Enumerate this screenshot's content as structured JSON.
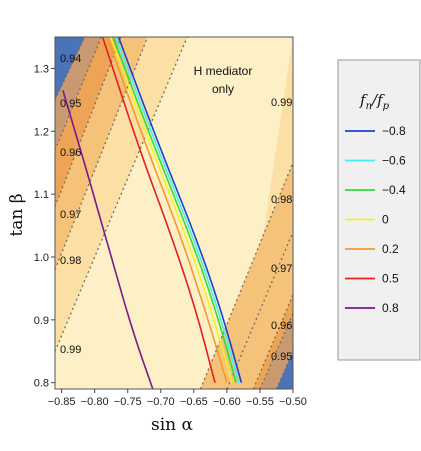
{
  "chart_data": {
    "type": "contour",
    "xlabel": "sin α",
    "ylabel": "tan β",
    "xlim": [
      -0.86,
      -0.5
    ],
    "ylim": [
      0.79,
      1.35
    ],
    "x_ticks": [
      "−0.85",
      "−0.80",
      "−0.75",
      "−0.70",
      "−0.65",
      "−0.60",
      "−0.55",
      "−0.50"
    ],
    "x_tick_values": [
      -0.85,
      -0.8,
      -0.75,
      -0.7,
      -0.65,
      -0.6,
      -0.55,
      -0.5
    ],
    "y_ticks": [
      "0.8",
      "0.9",
      "1.0",
      "1.1",
      "1.2",
      "1.3"
    ],
    "y_tick_values": [
      0.8,
      0.9,
      1.0,
      1.1,
      1.2,
      1.3
    ],
    "annotation": [
      "H mediator",
      "only"
    ],
    "contour_labels_left": [
      "0.94",
      "0.95",
      "0.96",
      "0.97",
      "0.98",
      "0.99"
    ],
    "contour_labels_right": [
      "0.99",
      "0.98",
      "0.97",
      "0.96",
      "0.95"
    ],
    "legend": {
      "title": "f_n/f_p",
      "title_main": "f",
      "title_sub_n": "n",
      "title_sep": "/",
      "title_sub_p": "p",
      "position": "right",
      "entries": [
        {
          "label": "−0.8",
          "color": "#1f3fd6"
        },
        {
          "label": "−0.6",
          "color": "#3ff2f2"
        },
        {
          "label": "−0.4",
          "color": "#33dd33"
        },
        {
          "label": "0",
          "color": "#f2f22a"
        },
        {
          "label": "0.2",
          "color": "#f59a2a"
        },
        {
          "label": "0.5",
          "color": "#e61e1e"
        },
        {
          "label": "0.8",
          "color": "#7a1a8c"
        }
      ]
    },
    "series": [
      {
        "name": "−0.8",
        "color": "#1f3fd6",
        "x": [
          -0.764,
          -0.7,
          -0.65,
          -0.61,
          -0.578
        ],
        "y": [
          1.35,
          1.17,
          1.04,
          0.92,
          0.8
        ]
      },
      {
        "name": "−0.6",
        "color": "#3ff2f2",
        "x": [
          -0.768,
          -0.704,
          -0.654,
          -0.614,
          -0.582
        ],
        "y": [
          1.35,
          1.17,
          1.04,
          0.92,
          0.8
        ]
      },
      {
        "name": "−0.4",
        "color": "#33dd33",
        "x": [
          -0.772,
          -0.708,
          -0.658,
          -0.618,
          -0.586
        ],
        "y": [
          1.35,
          1.17,
          1.04,
          0.92,
          0.8
        ]
      },
      {
        "name": "0",
        "color": "#f2f22a",
        "x": [
          -0.776,
          -0.713,
          -0.664,
          -0.625,
          -0.592
        ],
        "y": [
          1.35,
          1.17,
          1.04,
          0.92,
          0.8
        ]
      },
      {
        "name": "0.2",
        "color": "#f59a2a",
        "x": [
          -0.781,
          -0.72,
          -0.672,
          -0.634,
          -0.6
        ],
        "y": [
          1.35,
          1.17,
          1.04,
          0.92,
          0.8
        ]
      },
      {
        "name": "0.5",
        "color": "#e61e1e",
        "x": [
          -0.788,
          -0.732,
          -0.686,
          -0.648,
          -0.618
        ],
        "y": [
          1.35,
          1.17,
          1.04,
          0.92,
          0.8
        ]
      },
      {
        "name": "0.8",
        "color": "#7a1a8c",
        "x": [
          -0.848,
          -0.81,
          -0.775,
          -0.742,
          -0.712
        ],
        "y": [
          1.265,
          1.13,
          1.0,
          0.88,
          0.79
        ]
      }
    ],
    "shading": {
      "base": "#fdf0c6",
      "light": "#fbdfa4",
      "mid": "#f5c27a",
      "dark": "#eea456",
      "darker": "#c99a72",
      "blue": "#4a73b8"
    }
  }
}
